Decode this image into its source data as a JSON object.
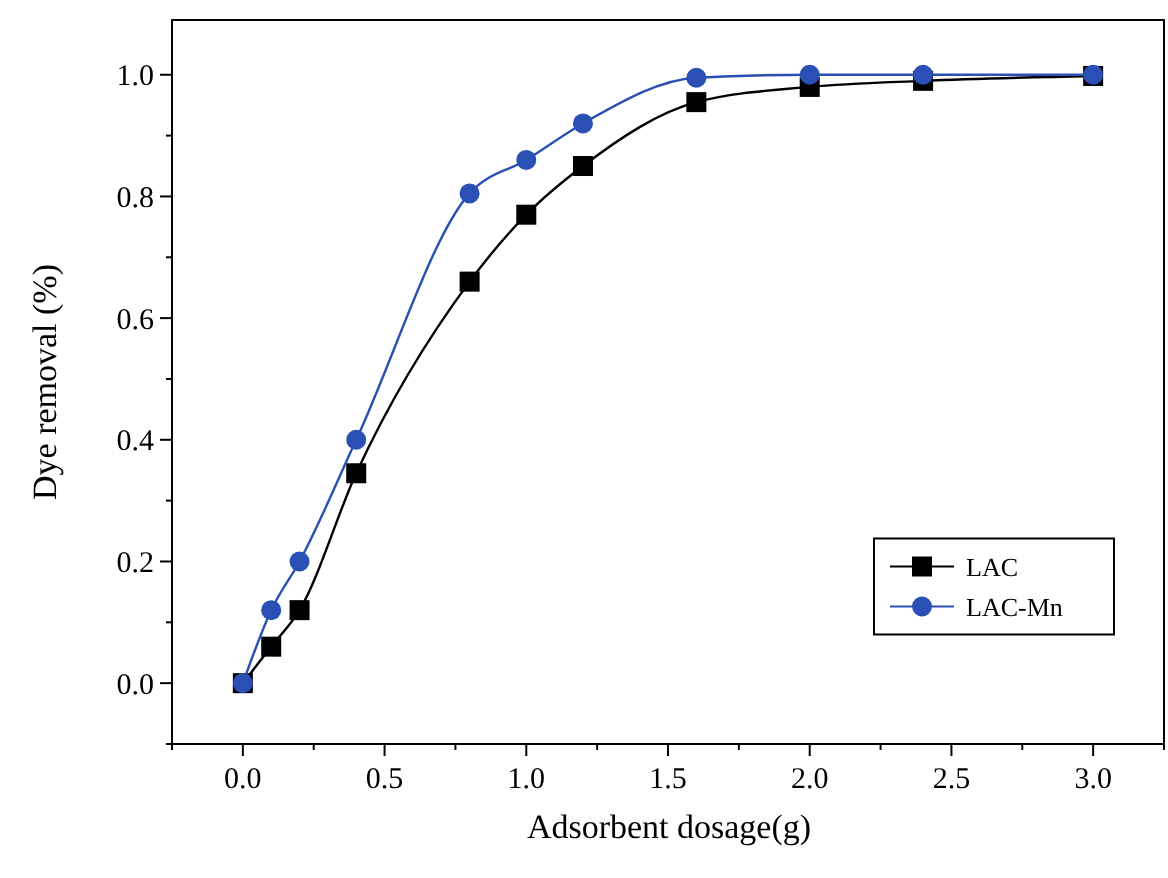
{
  "chart_data": {
    "type": "line",
    "xlabel": "Adsorbent dosage(g)",
    "ylabel": "Dye removal (%)",
    "x": [
      0,
      0.1,
      0.2,
      0.4,
      0.8,
      1.0,
      1.2,
      1.6,
      2.0,
      2.4,
      3.0
    ],
    "series": [
      {
        "name": "LAC",
        "color": "#000000",
        "marker": "square",
        "values": [
          0,
          0.06,
          0.12,
          0.345,
          0.66,
          0.77,
          0.85,
          0.955,
          0.98,
          0.99,
          0.998
        ]
      },
      {
        "name": "LAC-Mn",
        "color": "#2a4fb5",
        "marker": "circle",
        "values": [
          0,
          0.12,
          0.2,
          0.4,
          0.805,
          0.86,
          0.92,
          0.995,
          1.0,
          1.0,
          1.0
        ]
      }
    ],
    "xlim": [
      -0.25,
      3.25
    ],
    "xticks": [
      {
        "value": -0.25,
        "label": null
      },
      {
        "value": 0,
        "label": "0.0"
      },
      {
        "value": 0.25,
        "label": null
      },
      {
        "value": 0.5,
        "label": "0.5"
      },
      {
        "value": 0.75,
        "label": null
      },
      {
        "value": 1,
        "label": "1.0"
      },
      {
        "value": 1.25,
        "label": null
      },
      {
        "value": 1.5,
        "label": "1.5"
      },
      {
        "value": 1.75,
        "label": null
      },
      {
        "value": 2,
        "label": "2.0"
      },
      {
        "value": 2.25,
        "label": null
      },
      {
        "value": 2.5,
        "label": "2.5"
      },
      {
        "value": 2.75,
        "label": null
      },
      {
        "value": 3,
        "label": "3.0"
      },
      {
        "value": 3.25,
        "label": null
      }
    ],
    "ylim": [
      -0.1,
      1.09
    ],
    "yticks": [
      {
        "value": -0.1,
        "label": null
      },
      {
        "value": 0,
        "label": "0.0"
      },
      {
        "value": 0.1,
        "label": null
      },
      {
        "value": 0.2,
        "label": "0.2"
      },
      {
        "value": 0.3,
        "label": null
      },
      {
        "value": 0.4,
        "label": "0.4"
      },
      {
        "value": 0.5,
        "label": null
      },
      {
        "value": 0.6,
        "label": "0.6"
      },
      {
        "value": 0.7,
        "label": null
      },
      {
        "value": 0.8,
        "label": "0.8"
      },
      {
        "value": 0.9,
        "label": null
      },
      {
        "value": 1,
        "label": "1.0"
      }
    ],
    "legend": "bottom right",
    "grid": false
  }
}
